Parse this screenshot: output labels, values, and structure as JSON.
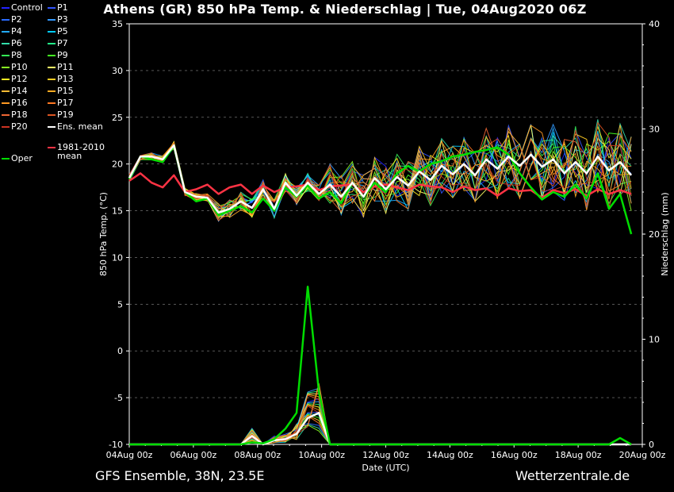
{
  "header": {
    "title": "Athens  (GR)  850 hPa Temp. & Niederschlag | Tue, 04Aug2020 06Z"
  },
  "footer": {
    "left": "GFS Ensemble, 38N, 23.5E",
    "right": "Wetterzentrale.de"
  },
  "legend": [
    {
      "label": "Control",
      "color": "#2222ff"
    },
    {
      "label": "P1",
      "color": "#3355ff"
    },
    {
      "label": "P2",
      "color": "#2a6bff"
    },
    {
      "label": "P3",
      "color": "#3399ff"
    },
    {
      "label": "P4",
      "color": "#22aaff"
    },
    {
      "label": "P5",
      "color": "#00ccff"
    },
    {
      "label": "P6",
      "color": "#33ddaa"
    },
    {
      "label": "P7",
      "color": "#22ee88"
    },
    {
      "label": "P8",
      "color": "#33ee55"
    },
    {
      "label": "P9",
      "color": "#44ff22"
    },
    {
      "label": "P10",
      "color": "#88ff22"
    },
    {
      "label": "P11",
      "color": "#ffff66"
    },
    {
      "label": "P12",
      "color": "#ffee22"
    },
    {
      "label": "P13",
      "color": "#ffcc22"
    },
    {
      "label": "P14",
      "color": "#ffbb33"
    },
    {
      "label": "P15",
      "color": "#ffaa22"
    },
    {
      "label": "P16",
      "color": "#ff9922"
    },
    {
      "label": "P17",
      "color": "#ff7722"
    },
    {
      "label": "P18",
      "color": "#ee6633"
    },
    {
      "label": "P19",
      "color": "#dd5522"
    },
    {
      "label": "P20",
      "color": "#cc3322"
    },
    {
      "label": "Ens. mean",
      "color": "#ffffff"
    },
    {
      "label": "Oper",
      "color": "#00dd00"
    },
    {
      "label": "1981-2010 mean",
      "color": "#ff3344"
    }
  ],
  "chart_data": {
    "type": "line",
    "xlabel": "Date (UTC)",
    "ylabel": "850 hPa Temp. (°C)",
    "y2label": "Niederschlag (mm)",
    "ylim": [
      -10,
      35
    ],
    "y2lim": [
      0,
      40
    ],
    "y_ticks": [
      -10,
      -5,
      0,
      5,
      10,
      15,
      20,
      25,
      30,
      35
    ],
    "y2_ticks": [
      0,
      10,
      20,
      30,
      40
    ],
    "xlim_hours": [
      0,
      384
    ],
    "x_ticks": [
      {
        "h": 0,
        "label": "04Aug 00z"
      },
      {
        "h": 48,
        "label": "06Aug 00z"
      },
      {
        "h": 96,
        "label": "08Aug 00z"
      },
      {
        "h": 144,
        "label": "10Aug 00z"
      },
      {
        "h": 192,
        "label": "12Aug 00z"
      },
      {
        "h": 240,
        "label": "14Aug 00z"
      },
      {
        "h": 288,
        "label": "16Aug 00z"
      },
      {
        "h": 336,
        "label": "18Aug 00z"
      },
      {
        "h": 384,
        "label": "20Aug 00z"
      }
    ],
    "grid": "horizontal dashed",
    "oper_temp": [
      18.4,
      20.8,
      20.5,
      20.2,
      22.0,
      17.0,
      16.0,
      16.3,
      14.5,
      15.0,
      15.5,
      14.8,
      16.3,
      15.0,
      17.5,
      16.5,
      17.7,
      16.3,
      17.0,
      15.8,
      18.0,
      16.5,
      18.0,
      17.0,
      19.0,
      19.8,
      19.2,
      20.0,
      20.3,
      20.8,
      21.0,
      21.3,
      21.5,
      21.8,
      21.0,
      19.0,
      17.5,
      16.2,
      17.0,
      16.5,
      17.8,
      16.3,
      19.0,
      15.2,
      16.8,
      12.5
    ],
    "ens_mean_temp": [
      18.5,
      20.8,
      20.8,
      20.5,
      22.0,
      17.0,
      16.5,
      16.4,
      14.8,
      15.2,
      16.0,
      15.3,
      17.3,
      15.2,
      18.0,
      16.6,
      18.0,
      16.8,
      17.8,
      16.5,
      18.0,
      16.5,
      18.5,
      17.3,
      18.6,
      17.7,
      19.2,
      18.3,
      19.8,
      18.9,
      20.0,
      18.8,
      20.5,
      19.5,
      20.8,
      19.8,
      21.0,
      19.7,
      20.5,
      19.0,
      20.2,
      19.0,
      20.8,
      19.3,
      20.2,
      18.8
    ],
    "clim_temp": [
      18.2,
      19.0,
      18.0,
      17.5,
      18.8,
      17.0,
      17.3,
      17.8,
      16.8,
      17.5,
      17.8,
      16.8,
      17.7,
      17.0,
      17.5,
      17.6,
      17.8,
      17.2,
      17.6,
      17.7,
      17.8,
      17.0,
      17.6,
      17.8,
      17.5,
      17.2,
      17.8,
      17.6,
      17.5,
      17.0,
      17.6,
      17.2,
      17.4,
      16.6,
      17.4,
      17.1,
      17.2,
      16.4,
      17.2,
      16.9,
      17.3,
      16.6,
      17.3,
      16.8,
      17.2,
      16.8
    ],
    "precip_oper_mm": [
      0,
      0,
      0,
      0,
      0,
      0,
      0,
      0,
      0,
      0,
      0,
      0.2,
      0.1,
      0.5,
      1.5,
      3.0,
      15.0,
      5.0,
      0,
      0,
      0,
      0,
      0,
      0,
      0,
      0,
      0,
      0,
      0,
      0,
      0,
      0,
      0,
      0,
      0,
      0,
      0,
      0,
      0,
      0,
      0,
      0,
      0,
      0,
      0.6,
      0
    ],
    "precip_mean_mm": [
      0,
      0,
      0,
      0,
      0,
      0,
      0,
      0,
      0,
      0,
      0,
      0.8,
      0,
      0.4,
      0.5,
      1.0,
      2.5,
      3.0,
      0,
      0,
      0,
      0,
      0,
      0,
      0,
      0,
      0,
      0,
      0,
      0,
      0,
      0,
      0,
      0,
      0,
      0,
      0,
      0,
      0,
      0,
      0,
      0,
      0,
      0,
      0,
      0
    ]
  }
}
